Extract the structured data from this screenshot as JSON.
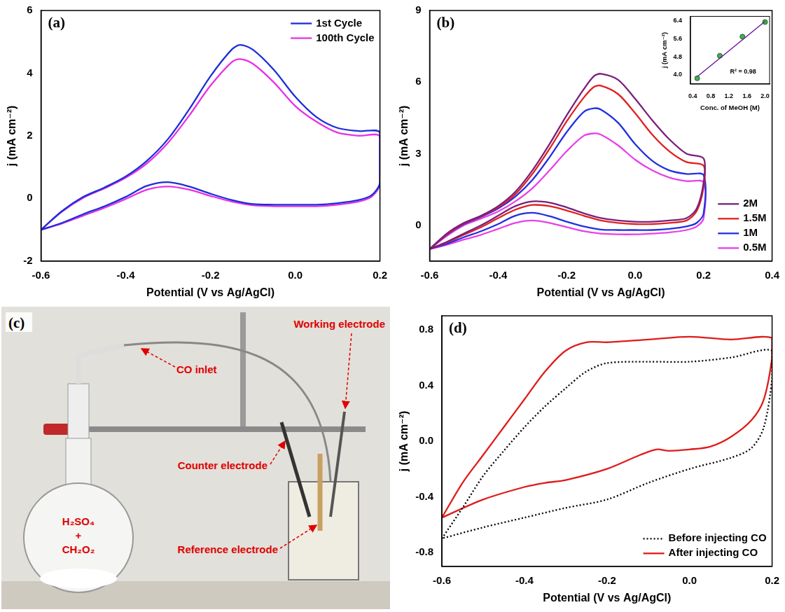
{
  "chart_data": [
    {
      "type": "line",
      "panel_label": "(a)",
      "x_label": "Potential (V vs Ag/AgCl)",
      "y_label": "j (mA cm⁻²)",
      "xlim": [
        -0.6,
        0.2
      ],
      "xticks": [
        -0.6,
        -0.4,
        -0.2,
        {
          "value": 0,
          "label": "0.0"
        },
        0.2
      ],
      "ylim": [
        -2,
        6
      ],
      "yticks": [
        -2,
        0,
        2,
        4,
        6
      ],
      "grid": false,
      "legend": "upper right",
      "series": [
        {
          "name": "1st Cycle",
          "color": "#1a2fd8",
          "line_style": "solid",
          "marker": "none",
          "x": [
            -0.6,
            -0.55,
            -0.5,
            -0.45,
            -0.4,
            -0.35,
            -0.3,
            -0.25,
            -0.2,
            -0.15,
            -0.13,
            -0.1,
            -0.05,
            0,
            0.05,
            0.1,
            0.15,
            0.2,
            0.2,
            0.18,
            0.15,
            0.1,
            0.05,
            0,
            -0.05,
            -0.1,
            -0.15,
            -0.2,
            -0.25,
            -0.3,
            -0.35,
            -0.4,
            -0.45,
            -0.5,
            -0.55,
            -0.6
          ],
          "values": [
            -1.0,
            -0.4,
            0.05,
            0.35,
            0.7,
            1.2,
            1.9,
            2.85,
            3.9,
            4.75,
            4.9,
            4.75,
            4.1,
            3.25,
            2.6,
            2.25,
            2.15,
            2.1,
            0.5,
            0.1,
            -0.05,
            -0.15,
            -0.2,
            -0.2,
            -0.2,
            -0.18,
            -0.05,
            0.15,
            0.38,
            0.52,
            0.4,
            0.05,
            -0.25,
            -0.5,
            -0.78,
            -1.0
          ]
        },
        {
          "name": "100th Cycle",
          "color": "#e830e8",
          "line_style": "solid",
          "marker": "none",
          "x": [
            -0.6,
            -0.55,
            -0.5,
            -0.45,
            -0.4,
            -0.35,
            -0.3,
            -0.25,
            -0.2,
            -0.15,
            -0.13,
            -0.1,
            -0.05,
            0,
            0.05,
            0.1,
            0.15,
            0.2,
            0.2,
            0.18,
            0.15,
            0.1,
            0.05,
            0,
            -0.05,
            -0.1,
            -0.15,
            -0.2,
            -0.25,
            -0.3,
            -0.35,
            -0.4,
            -0.45,
            -0.5,
            -0.55,
            -0.6
          ],
          "values": [
            -1.0,
            -0.42,
            0.02,
            0.32,
            0.66,
            1.12,
            1.78,
            2.65,
            3.6,
            4.35,
            4.45,
            4.3,
            3.7,
            2.95,
            2.45,
            2.1,
            2.0,
            1.98,
            0.45,
            0.05,
            -0.1,
            -0.2,
            -0.25,
            -0.25,
            -0.25,
            -0.22,
            -0.1,
            0.08,
            0.28,
            0.38,
            0.28,
            -0.02,
            -0.3,
            -0.55,
            -0.8,
            -1.0
          ]
        }
      ]
    },
    {
      "type": "line",
      "panel_label": "(b)",
      "x_label": "Potential (V vs Ag/AgCl)",
      "y_label": "j (mA cm⁻²)",
      "xlim": [
        -0.6,
        0.4
      ],
      "xticks": [
        -0.6,
        -0.4,
        -0.2,
        {
          "value": 0,
          "label": "0.0"
        },
        0.2,
        0.4
      ],
      "ylim": [
        -1.5,
        9
      ],
      "yticks": [
        0,
        3,
        6,
        9
      ],
      "grid": false,
      "legend": "lower right",
      "series": [
        {
          "name": "2M",
          "color": "#7a1f7a",
          "line_style": "solid",
          "marker": "none",
          "x": [
            -0.6,
            -0.55,
            -0.5,
            -0.45,
            -0.4,
            -0.35,
            -0.3,
            -0.25,
            -0.2,
            -0.15,
            -0.12,
            -0.1,
            -0.05,
            0,
            0.05,
            0.1,
            0.15,
            0.2,
            0.2,
            0.18,
            0.15,
            0.1,
            0.05,
            0,
            -0.05,
            -0.1,
            -0.15,
            -0.2,
            -0.25,
            -0.3,
            -0.35,
            -0.4,
            -0.45,
            -0.5,
            -0.55,
            -0.6
          ],
          "values": [
            -1.0,
            -0.35,
            0.1,
            0.4,
            0.8,
            1.4,
            2.3,
            3.4,
            4.6,
            5.7,
            6.25,
            6.35,
            6.1,
            5.3,
            4.4,
            3.6,
            3.0,
            2.8,
            1.8,
            0.7,
            0.3,
            0.2,
            0.15,
            0.15,
            0.2,
            0.3,
            0.5,
            0.75,
            0.95,
            1.0,
            0.8,
            0.4,
            0.0,
            -0.35,
            -0.7,
            -1.0
          ]
        },
        {
          "name": "1.5M",
          "color": "#e02020",
          "line_style": "solid",
          "marker": "none",
          "x": [
            -0.6,
            -0.55,
            -0.5,
            -0.45,
            -0.4,
            -0.35,
            -0.3,
            -0.25,
            -0.2,
            -0.15,
            -0.12,
            -0.1,
            -0.05,
            0,
            0.05,
            0.1,
            0.15,
            0.2,
            0.2,
            0.18,
            0.15,
            0.1,
            0.05,
            0,
            -0.05,
            -0.1,
            -0.15,
            -0.2,
            -0.25,
            -0.3,
            -0.35,
            -0.4,
            -0.45,
            -0.5,
            -0.55,
            -0.6
          ],
          "values": [
            -1.0,
            -0.38,
            0.08,
            0.38,
            0.75,
            1.3,
            2.15,
            3.2,
            4.35,
            5.35,
            5.8,
            5.85,
            5.5,
            4.7,
            3.8,
            3.1,
            2.65,
            2.5,
            1.6,
            0.6,
            0.2,
            0.1,
            0.05,
            0.05,
            0.1,
            0.2,
            0.4,
            0.62,
            0.8,
            0.85,
            0.65,
            0.3,
            -0.08,
            -0.4,
            -0.72,
            -1.0
          ]
        },
        {
          "name": "1M",
          "color": "#2030e0",
          "line_style": "solid",
          "marker": "none",
          "x": [
            -0.6,
            -0.55,
            -0.5,
            -0.45,
            -0.4,
            -0.35,
            -0.3,
            -0.25,
            -0.2,
            -0.15,
            -0.12,
            -0.1,
            -0.05,
            0,
            0.05,
            0.1,
            0.15,
            0.2,
            0.2,
            0.18,
            0.15,
            0.1,
            0.05,
            0,
            -0.05,
            -0.1,
            -0.15,
            -0.2,
            -0.25,
            -0.3,
            -0.35,
            -0.4,
            -0.45,
            -0.5,
            -0.55,
            -0.6
          ],
          "values": [
            -1.0,
            -0.4,
            0.05,
            0.35,
            0.7,
            1.2,
            1.9,
            2.85,
            3.9,
            4.75,
            4.9,
            4.85,
            4.3,
            3.4,
            2.7,
            2.3,
            2.15,
            2.1,
            0.5,
            0.1,
            -0.05,
            -0.15,
            -0.2,
            -0.2,
            -0.2,
            -0.18,
            -0.05,
            0.15,
            0.38,
            0.52,
            0.4,
            0.05,
            -0.25,
            -0.5,
            -0.78,
            -1.0
          ]
        },
        {
          "name": "0.5M",
          "color": "#e840e8",
          "line_style": "solid",
          "marker": "none",
          "x": [
            -0.6,
            -0.55,
            -0.5,
            -0.45,
            -0.4,
            -0.35,
            -0.3,
            -0.25,
            -0.2,
            -0.15,
            -0.12,
            -0.1,
            -0.05,
            0,
            0.05,
            0.1,
            0.15,
            0.2,
            0.2,
            0.18,
            0.15,
            0.1,
            0.05,
            0,
            -0.05,
            -0.1,
            -0.15,
            -0.2,
            -0.25,
            -0.3,
            -0.35,
            -0.4,
            -0.45,
            -0.5,
            -0.55,
            -0.6
          ],
          "values": [
            -1.0,
            -0.45,
            0.0,
            0.28,
            0.58,
            1.0,
            1.55,
            2.3,
            3.1,
            3.75,
            3.85,
            3.8,
            3.35,
            2.75,
            2.3,
            2.0,
            1.85,
            1.8,
            0.3,
            -0.05,
            -0.2,
            -0.3,
            -0.35,
            -0.38,
            -0.38,
            -0.35,
            -0.25,
            -0.08,
            0.1,
            0.2,
            0.1,
            -0.15,
            -0.4,
            -0.6,
            -0.82,
            -1.0
          ]
        }
      ]
    },
    {
      "type": "scatter",
      "x_label": "Conc. of MeOH (M)",
      "y_label": "j (mA cm⁻²)",
      "annotation": "R² = 0.98",
      "xlim": [
        0.35,
        2.1
      ],
      "xticks": [
        0.4,
        0.8,
        1.2,
        1.6,
        {
          "value": 2,
          "label": "2.0"
        }
      ],
      "ylim": [
        3.6,
        6.6
      ],
      "yticks": [
        {
          "value": 4,
          "label": "4.0"
        },
        4.8,
        5.6,
        6.4
      ],
      "grid": false,
      "series": [
        {
          "type": "line",
          "color": "#6a1b9a",
          "line_style": "solid",
          "marker": "none",
          "x": [
            0.5,
            2.0
          ],
          "values": [
            3.92,
            6.38
          ]
        },
        {
          "type": "scatter",
          "color": "#3cb44b",
          "marker": "circle",
          "x": [
            0.5,
            1.0,
            1.5,
            2.0
          ],
          "values": [
            3.85,
            4.85,
            5.7,
            6.35
          ]
        }
      ]
    },
    {
      "type": "line",
      "panel_label": "(d)",
      "x_label": "Potential (V vs Ag/AgCl)",
      "y_label": "j (mA cm⁻²)",
      "xlim": [
        -0.6,
        0.2
      ],
      "xticks": [
        -0.6,
        -0.4,
        -0.2,
        {
          "value": 0,
          "label": "0.0"
        },
        0.2
      ],
      "ylim": [
        -0.9,
        0.9
      ],
      "yticks": [
        -0.8,
        -0.4,
        {
          "value": 0,
          "label": "0.0"
        },
        0.4,
        0.8
      ],
      "grid": false,
      "legend": "lower right",
      "series": [
        {
          "name": "Before injecting CO",
          "color": "#000000",
          "line_style": "dotted",
          "marker": "none",
          "x": [
            -0.6,
            -0.55,
            -0.5,
            -0.45,
            -0.4,
            -0.35,
            -0.3,
            -0.25,
            -0.2,
            -0.1,
            0,
            0.1,
            0.2,
            0.2,
            0.18,
            0.15,
            0.1,
            0,
            -0.1,
            -0.2,
            -0.3,
            -0.4,
            -0.5,
            -0.6
          ],
          "values": [
            -0.7,
            -0.48,
            -0.25,
            -0.07,
            0.1,
            0.25,
            0.38,
            0.5,
            0.56,
            0.57,
            0.57,
            0.6,
            0.65,
            0.45,
            0.1,
            -0.05,
            -0.12,
            -0.2,
            -0.3,
            -0.42,
            -0.48,
            -0.55,
            -0.62,
            -0.7
          ]
        },
        {
          "name": "After injecting CO",
          "color": "#e01b1b",
          "line_style": "solid",
          "marker": "none",
          "x": [
            -0.6,
            -0.55,
            -0.5,
            -0.45,
            -0.4,
            -0.35,
            -0.3,
            -0.25,
            -0.2,
            -0.1,
            0,
            0.1,
            0.2,
            0.2,
            0.18,
            0.15,
            0.1,
            0.05,
            0,
            -0.05,
            -0.08,
            -0.12,
            -0.2,
            -0.3,
            -0.35,
            -0.4,
            -0.5,
            -0.6
          ],
          "values": [
            -0.55,
            -0.3,
            -0.1,
            0.1,
            0.3,
            0.5,
            0.65,
            0.71,
            0.71,
            0.73,
            0.75,
            0.73,
            0.74,
            0.6,
            0.3,
            0.15,
            0.03,
            -0.04,
            -0.06,
            -0.07,
            -0.06,
            -0.1,
            -0.2,
            -0.28,
            -0.3,
            -0.33,
            -0.42,
            -0.55
          ]
        }
      ]
    }
  ],
  "panel_c": {
    "panel_label": "(c)",
    "labels": {
      "co_inlet": "CO inlet",
      "working_electrode": "Working electrode",
      "counter_electrode": "Counter electrode",
      "reference_electrode": "Reference electrode",
      "flask": [
        "H₂SO₄",
        "+",
        "CH₂O₂"
      ]
    }
  }
}
